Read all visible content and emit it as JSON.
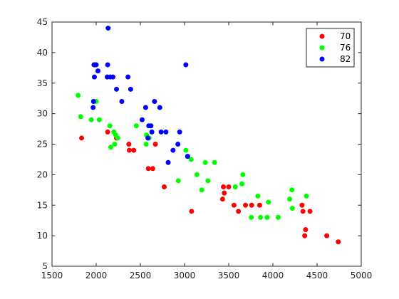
{
  "chart_data": {
    "type": "scatter",
    "title": "",
    "xlabel": "",
    "ylabel": "",
    "xlim": [
      1500,
      5000
    ],
    "ylim": [
      5,
      45
    ],
    "x_ticks": [
      1500,
      2000,
      2500,
      3000,
      3500,
      4000,
      4500,
      5000
    ],
    "y_ticks": [
      5,
      10,
      15,
      20,
      25,
      30,
      35,
      40,
      45
    ],
    "grid": false,
    "legend_position": "top-right",
    "series": [
      {
        "name": "70",
        "color": "#ff0000",
        "points": [
          [
            1835,
            26
          ],
          [
            2130,
            27
          ],
          [
            2230,
            26
          ],
          [
            2370,
            25
          ],
          [
            2375,
            24
          ],
          [
            2425,
            24
          ],
          [
            2590,
            21
          ],
          [
            2640,
            21
          ],
          [
            2670,
            25
          ],
          [
            2770,
            18
          ],
          [
            3080,
            14
          ],
          [
            3430,
            16
          ],
          [
            3440,
            18
          ],
          [
            3450,
            17
          ],
          [
            3500,
            18
          ],
          [
            3560,
            15
          ],
          [
            3610,
            14
          ],
          [
            3690,
            15
          ],
          [
            3760,
            15
          ],
          [
            3850,
            15
          ],
          [
            4330,
            15
          ],
          [
            4340,
            14
          ],
          [
            4360,
            10
          ],
          [
            4370,
            11
          ],
          [
            4420,
            14
          ],
          [
            4610,
            10
          ],
          [
            4740,
            9
          ]
        ]
      },
      {
        "name": "76",
        "color": "#00ff00",
        "points": [
          [
            1795,
            33
          ],
          [
            1825,
            29.5
          ],
          [
            1945,
            29
          ],
          [
            2000,
            32
          ],
          [
            2035,
            29
          ],
          [
            2155,
            28
          ],
          [
            2165,
            24.5
          ],
          [
            2200,
            27
          ],
          [
            2210,
            25
          ],
          [
            2220,
            26.5
          ],
          [
            2245,
            26
          ],
          [
            2455,
            28
          ],
          [
            2565,
            25
          ],
          [
            2570,
            26.5
          ],
          [
            2600,
            26
          ],
          [
            2930,
            19
          ],
          [
            3015,
            24
          ],
          [
            3035,
            23
          ],
          [
            3075,
            22.5
          ],
          [
            3140,
            20
          ],
          [
            3195,
            17.5
          ],
          [
            3235,
            22
          ],
          [
            3265,
            19
          ],
          [
            3340,
            22
          ],
          [
            3575,
            18
          ],
          [
            3650,
            18.5
          ],
          [
            3660,
            20
          ],
          [
            3755,
            13
          ],
          [
            3830,
            16.5
          ],
          [
            3860,
            13
          ],
          [
            3935,
            13
          ],
          [
            3950,
            15.5
          ],
          [
            4060,
            13
          ],
          [
            4190,
            16
          ],
          [
            4215,
            17.5
          ],
          [
            4220,
            14.5
          ],
          [
            4380,
            16.5
          ]
        ]
      },
      {
        "name": "82",
        "color": "#0000ff",
        "points": [
          [
            1965,
            31
          ],
          [
            1970,
            32
          ],
          [
            1975,
            38
          ],
          [
            1980,
            36
          ],
          [
            1985,
            38
          ],
          [
            2000,
            38
          ],
          [
            2020,
            37
          ],
          [
            2125,
            36
          ],
          [
            2130,
            38
          ],
          [
            2135,
            44
          ],
          [
            2160,
            36
          ],
          [
            2190,
            36
          ],
          [
            2230,
            34
          ],
          [
            2290,
            32
          ],
          [
            2360,
            36
          ],
          [
            2390,
            34
          ],
          [
            2520,
            29
          ],
          [
            2560,
            31
          ],
          [
            2585,
            26
          ],
          [
            2595,
            28
          ],
          [
            2620,
            28
          ],
          [
            2630,
            27
          ],
          [
            2660,
            32
          ],
          [
            2720,
            31
          ],
          [
            2735,
            27
          ],
          [
            2790,
            27
          ],
          [
            2815,
            22
          ],
          [
            2870,
            24
          ],
          [
            2925,
            25
          ],
          [
            2945,
            27
          ],
          [
            3015,
            38
          ],
          [
            3035,
            23
          ]
        ]
      }
    ]
  }
}
